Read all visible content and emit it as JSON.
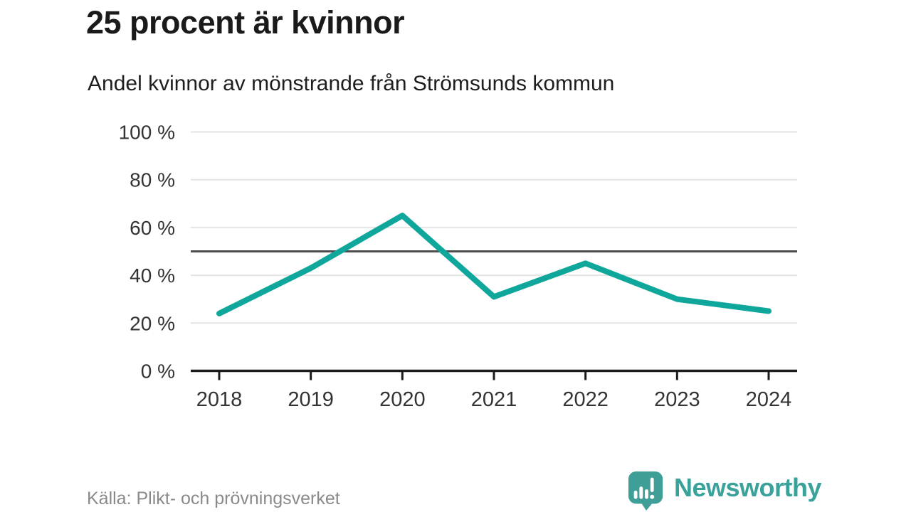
{
  "header": {
    "title": "25 procent är kvinnor",
    "subtitle": "Andel kvinnor av mönstrande från Strömsunds kommun"
  },
  "chart_data": {
    "type": "line",
    "title": "25 procent är kvinnor",
    "subtitle": "Andel kvinnor av mönstrande från Strömsunds kommun",
    "categories": [
      "2018",
      "2019",
      "2020",
      "2021",
      "2022",
      "2023",
      "2024"
    ],
    "series": [
      {
        "name": "Andel kvinnor av mönstrande",
        "values": [
          24,
          43,
          65,
          31,
          45,
          30,
          25
        ]
      }
    ],
    "xlabel": "",
    "ylabel": "",
    "ylim": [
      0,
      100
    ],
    "yticks": [
      0,
      20,
      40,
      60,
      80,
      100
    ],
    "ytick_suffix": " %",
    "reference_line": 50,
    "grid": true,
    "legend_position": "none",
    "colors": {
      "line": "#0fa79b",
      "reference_line": "#4d4d4d",
      "grid": "#e4e4e4",
      "axis": "#1c1c1c",
      "tick_label": "#333333"
    }
  },
  "footer": {
    "source": "Källa: Plikt- och prövningsverket",
    "brand": "Newsworthy",
    "brand_color": "#3aa29a",
    "logo_color": "#3f9e97",
    "logo_icon": "newsworthy-bar-chart-speech-bubble-icon"
  }
}
